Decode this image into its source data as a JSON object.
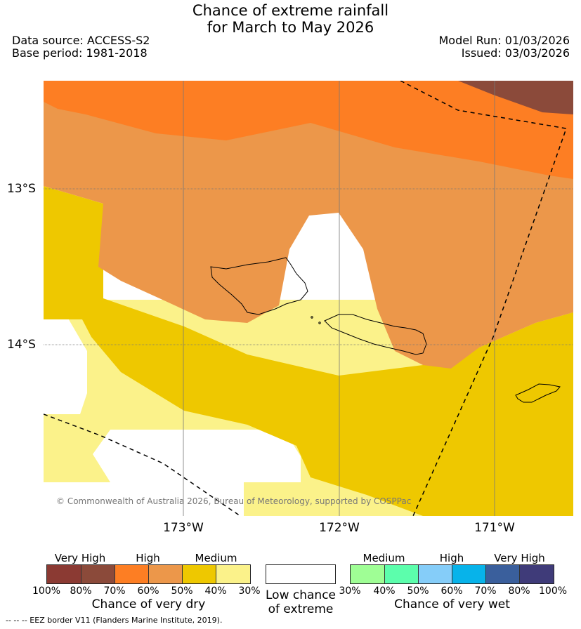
{
  "title": {
    "line1": "Chance of extreme rainfall",
    "line2": "for March to May 2026"
  },
  "meta": {
    "data_source": "Data source: ACCESS-S2",
    "base_period": "Base period: 1981-2018",
    "model_run": "Model Run: 01/03/2026",
    "issued": "Issued: 03/03/2026"
  },
  "axes": {
    "lat": [
      "13°S",
      "14°S"
    ],
    "lon": [
      "173°W",
      "172°W",
      "171°W"
    ]
  },
  "copyright": "© Commonwealth of Australia 2026, Bureau of Meteorology, supported by COSPPac",
  "colors": {
    "very_high_dry_100": "#8b3a33",
    "very_high_dry_80": "#8b4a3a",
    "high_dry_70": "#fd7e23",
    "high_dry_60": "#ec974a",
    "medium_dry_50": "#eec800",
    "medium_dry_40": "#fbf28a",
    "low": "#ffffff",
    "medium_wet_30": "#9ffe95",
    "medium_wet_40": "#5cfeac",
    "high_wet_50": "#85cdf9",
    "high_wet_60": "#07b3ea",
    "very_high_wet_70": "#3a5f9c",
    "very_high_wet_80": "#3f3b79"
  },
  "legend": {
    "dry": {
      "headers": [
        "Very High",
        "High",
        "Medium"
      ],
      "ticks": [
        "100%",
        "80%",
        "70%",
        "60%",
        "50%",
        "40%",
        "30%"
      ],
      "caption": "Chance of very dry"
    },
    "low": {
      "caption_line1": "Low chance",
      "caption_line2": "of extreme"
    },
    "wet": {
      "headers": [
        "Medium",
        "High",
        "Very High"
      ],
      "ticks": [
        "30%",
        "40%",
        "50%",
        "60%",
        "70%",
        "80%",
        "100%"
      ],
      "caption": "Chance of very wet"
    }
  },
  "footer": "--  --  -- EEZ border V11 (Flanders Marine Institute, 2019)."
}
